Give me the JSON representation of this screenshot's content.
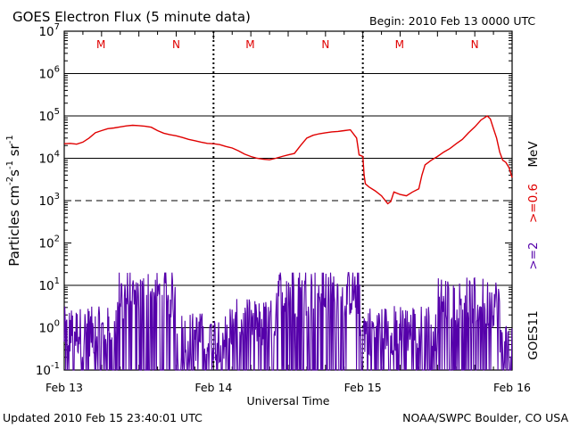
{
  "title": "GOES Electron Flux (5 minute data)",
  "begin_label": "Begin: 2010 Feb 13 0000 UTC",
  "updated_label": "Updated 2010 Feb 15 23:40:01 UTC",
  "credit_label": "NOAA/SWPC Boulder, CO USA",
  "colors": {
    "red_series": "#e00000",
    "purple_series": "#5500aa",
    "marker": "#e00000"
  },
  "chart_data": {
    "type": "line",
    "title": "GOES Electron Flux (5 minute data)",
    "xlabel": "Universal Time",
    "ylabel_parts": {
      "base": "Particles cm",
      "exp1": "-2",
      "mid1": "s",
      "exp2": "-1",
      "mid2": "sr",
      "exp3": "-1"
    },
    "right_labels": {
      "satellite": "GOES11",
      "series_purple": ">=2",
      "series_red": ">=0.6",
      "unit": "MeV"
    },
    "x_ticks": [
      "Feb 13",
      "Feb 14",
      "Feb 15",
      "Feb 16"
    ],
    "x_range_hours": [
      0,
      72
    ],
    "y_scale": "log",
    "y_range": [
      0.1,
      10000000
    ],
    "y_ticks": [
      {
        "value": 0.1,
        "base": "10",
        "exp": "-1"
      },
      {
        "value": 1,
        "base": "10",
        "exp": "0"
      },
      {
        "value": 10,
        "base": "10",
        "exp": "1"
      },
      {
        "value": 100,
        "base": "10",
        "exp": "2"
      },
      {
        "value": 1000,
        "base": "10",
        "exp": "3"
      },
      {
        "value": 10000,
        "base": "10",
        "exp": "4"
      },
      {
        "value": 100000,
        "base": "10",
        "exp": "5"
      },
      {
        "value": 1000000,
        "base": "10",
        "exp": "6"
      },
      {
        "value": 10000000,
        "base": "10",
        "exp": "7"
      }
    ],
    "grid_solid": [
      1,
      10,
      10000,
      100000,
      1000000
    ],
    "grid_dashed": [
      1000
    ],
    "markers": [
      {
        "hour": 5.9,
        "label": "M"
      },
      {
        "hour": 18.0,
        "label": "N"
      },
      {
        "hour": 29.9,
        "label": "M"
      },
      {
        "hour": 42.0,
        "label": "N"
      },
      {
        "hour": 53.9,
        "label": "M"
      },
      {
        "hour": 66.0,
        "label": "N"
      }
    ],
    "series": [
      {
        "name": ">=0.6 MeV",
        "points": [
          [
            0,
            22000
          ],
          [
            1,
            22500
          ],
          [
            2,
            21500
          ],
          [
            3,
            24000
          ],
          [
            4,
            30000
          ],
          [
            5,
            40000
          ],
          [
            6,
            45000
          ],
          [
            7,
            50000
          ],
          [
            8,
            52000
          ],
          [
            9,
            55000
          ],
          [
            10,
            58000
          ],
          [
            11,
            60000
          ],
          [
            12,
            59000
          ],
          [
            13,
            57000
          ],
          [
            14,
            54000
          ],
          [
            15,
            45000
          ],
          [
            16,
            39000
          ],
          [
            17,
            36000
          ],
          [
            18,
            34000
          ],
          [
            19,
            31000
          ],
          [
            20,
            28000
          ],
          [
            21,
            26000
          ],
          [
            22,
            24000
          ],
          [
            23,
            22500
          ],
          [
            24,
            22000
          ],
          [
            25,
            21000
          ],
          [
            26,
            19000
          ],
          [
            27,
            17500
          ],
          [
            28,
            15000
          ],
          [
            29,
            12500
          ],
          [
            30,
            11000
          ],
          [
            31,
            10000
          ],
          [
            32,
            9500
          ],
          [
            33,
            9200
          ],
          [
            34,
            10000
          ],
          [
            35,
            11000
          ],
          [
            36,
            12000
          ],
          [
            37,
            13000
          ],
          [
            38,
            20000
          ],
          [
            39,
            30000
          ],
          [
            40,
            35000
          ],
          [
            41,
            38000
          ],
          [
            42,
            40000
          ],
          [
            43,
            42000
          ],
          [
            44,
            43000
          ],
          [
            45,
            45000
          ],
          [
            46,
            47000
          ],
          [
            47,
            30000
          ],
          [
            47.4,
            12000
          ],
          [
            48,
            11000
          ],
          [
            48.2,
            4000
          ],
          [
            48.4,
            2500
          ],
          [
            49,
            2100
          ],
          [
            50,
            1700
          ],
          [
            51,
            1300
          ],
          [
            52,
            850
          ],
          [
            52.5,
            950
          ],
          [
            53,
            1600
          ],
          [
            54,
            1400
          ],
          [
            55,
            1300
          ],
          [
            56,
            1600
          ],
          [
            57,
            1900
          ],
          [
            57.5,
            4000
          ],
          [
            58,
            7000
          ],
          [
            59,
            9000
          ],
          [
            60,
            11000
          ],
          [
            61,
            14000
          ],
          [
            62,
            17000
          ],
          [
            63,
            22000
          ],
          [
            64,
            28000
          ],
          [
            65,
            40000
          ],
          [
            66,
            55000
          ],
          [
            67,
            80000
          ],
          [
            68,
            100000
          ],
          [
            68.5,
            85000
          ],
          [
            69,
            50000
          ],
          [
            69.5,
            30000
          ],
          [
            70,
            14000
          ],
          [
            70.5,
            9000
          ],
          [
            71,
            8000
          ],
          [
            71.5,
            6000
          ],
          [
            72,
            3500
          ]
        ]
      },
      {
        "name": ">=2 MeV",
        "segments": 6
      }
    ]
  }
}
